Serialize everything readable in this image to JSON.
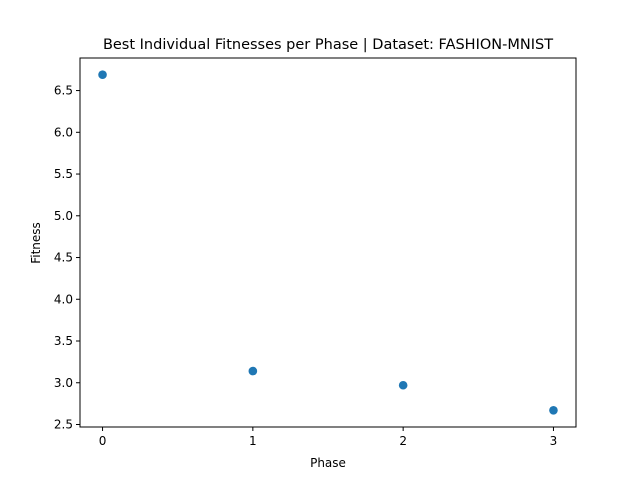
{
  "chart_data": {
    "type": "scatter",
    "title": "Best Individual Fitnesses per Phase | Dataset: FASHION-MNIST",
    "xlabel": "Phase",
    "ylabel": "Fitness",
    "x": [
      0,
      1,
      2,
      3
    ],
    "y": [
      6.69,
      3.14,
      2.97,
      2.67
    ],
    "xlim": [
      -0.15,
      3.15
    ],
    "ylim": [
      2.47,
      6.89
    ],
    "xticks": [
      "0",
      "1",
      "2",
      "3"
    ],
    "yticks": [
      "2.5",
      "3.0",
      "3.5",
      "4.0",
      "4.5",
      "5.0",
      "5.5",
      "6.0",
      "6.5"
    ],
    "marker_color": "#1f77b4",
    "grid": false,
    "legend": "none"
  }
}
